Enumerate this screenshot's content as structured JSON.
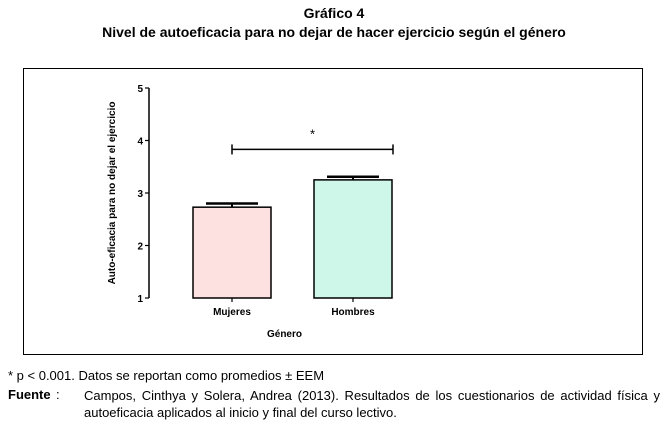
{
  "caption": {
    "number": "Gráfico 4",
    "title": "Nivel de autoeficacia para no dejar de hacer ejercicio según el género"
  },
  "chart_data": {
    "type": "bar",
    "categories": [
      "Mujeres",
      "Hombres"
    ],
    "values": [
      2.73,
      3.25
    ],
    "errors": [
      0.07,
      0.06
    ],
    "xlabel": "Género",
    "ylabel": "Auto-eficacia para no dejar el ejercicio",
    "ylim": [
      1,
      5
    ],
    "yticks": [
      "1",
      "2",
      "3",
      "4",
      "5"
    ],
    "bar_colors": [
      "#fde0e0",
      "#cff7e9"
    ],
    "significance": "*",
    "grid": false
  },
  "notes": {
    "p_value": "* p < 0.001. Datos se reportan como promedios ± EEM",
    "source_label": "Fuente",
    "source_sep": ":",
    "source_text": "Campos, Cinthya y Solera, Andrea (2013). Resultados de los cuestionarios de actividad física y autoeficacia aplicados al inicio y final del curso lectivo."
  }
}
